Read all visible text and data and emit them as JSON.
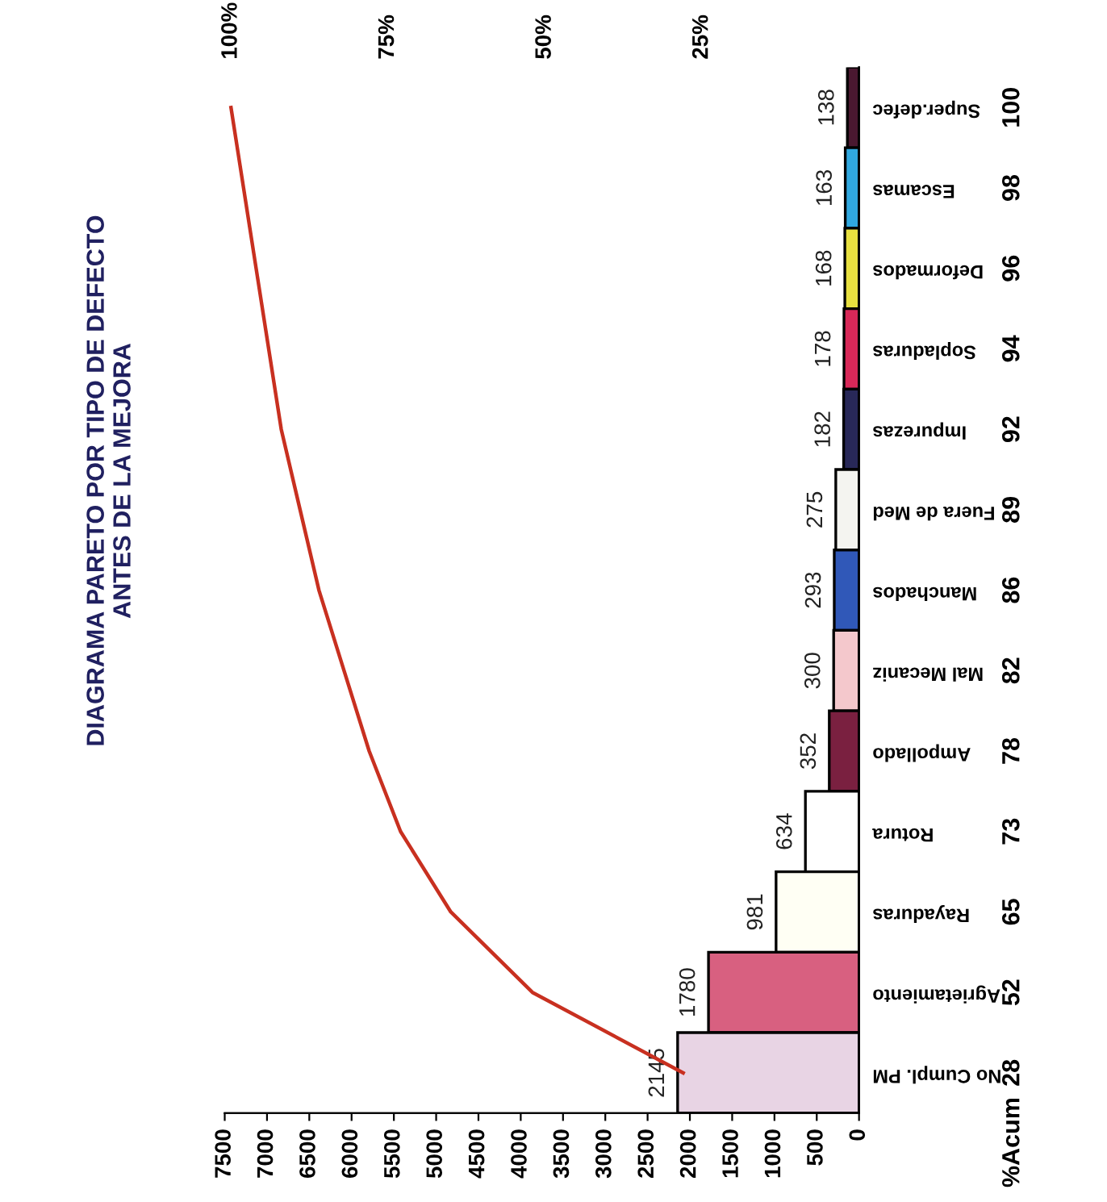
{
  "chart_data": {
    "type": "bar",
    "orientation": "horizontal",
    "title": "DIAGRAMA PARETO POR TIPO DE DEFECTO\nANTES DE LA MEJORA",
    "categories": [
      "Super.defec",
      "Escamas",
      "Deformados",
      "Sopladuras",
      "Impurezas",
      "Fuera de Med",
      "Manchados",
      "Mal Mecaniz",
      "Ampollado",
      "Rotura",
      "Rayaduras",
      "Agrietamiento",
      "No Cumpl. PM"
    ],
    "series": [
      {
        "values": [
          138,
          163,
          168,
          178,
          182,
          275,
          293,
          300,
          352,
          634,
          981,
          1780,
          2145
        ],
        "colors": [
          "#4a1830",
          "#30a8e0",
          "#e8e040",
          "#d82858",
          "#282858",
          "#f4f4f0",
          "#3058b8",
          "#f4c8cc",
          "#7a2040",
          "#ffffff",
          "#fffff4",
          "#d86080",
          "#e8d4e4"
        ]
      },
      {
        "type": "line",
        "axis": "x2",
        "color": "#c83020",
        "values": [
          100,
          98,
          96,
          94,
          92,
          89,
          86,
          82,
          78,
          73,
          65,
          52,
          28
        ]
      }
    ],
    "data_labels": true,
    "xlim": [
      7500,
      0
    ],
    "xticks": [
      7500,
      7000,
      6500,
      6000,
      5500,
      5000,
      4500,
      4000,
      3500,
      3000,
      2500,
      2000,
      1500,
      1000,
      500,
      0
    ],
    "x2lim": [
      101,
      0
    ],
    "x2ticks": [
      {
        "value": 25,
        "label": "25%"
      },
      {
        "value": 50,
        "label": "50%"
      },
      {
        "value": 75,
        "label": "75%"
      },
      {
        "value": 100,
        "label": "100%"
      }
    ],
    "annotations": [
      "%Acum"
    ]
  }
}
